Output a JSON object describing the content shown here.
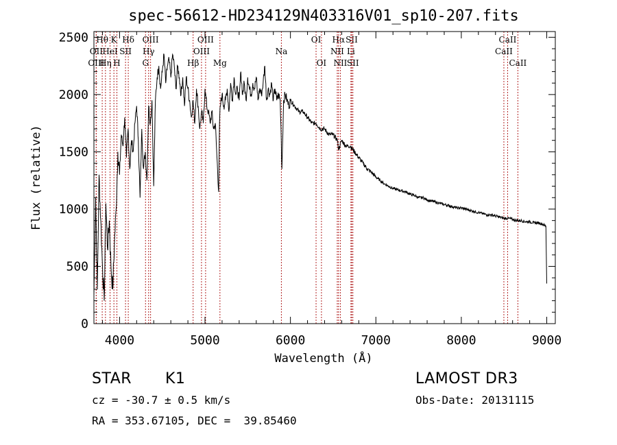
{
  "chart_data": {
    "type": "line",
    "title": "spec-56612-HD234129N403316V01_sp10-207.fits",
    "xlabel": "Wavelength (Å)",
    "ylabel": "Flux (relative)",
    "xlim": [
      3700,
      9100
    ],
    "ylim": [
      0,
      2550
    ],
    "xticks": [
      4000,
      5000,
      6000,
      7000,
      8000,
      9000
    ],
    "yticks": [
      0,
      500,
      1000,
      1500,
      2000,
      2500
    ],
    "series": [
      {
        "name": "flux",
        "x": [
          3700,
          3720,
          3740,
          3760,
          3780,
          3800,
          3820,
          3840,
          3860,
          3880,
          3900,
          3920,
          3940,
          3960,
          3980,
          4000,
          4020,
          4040,
          4060,
          4080,
          4100,
          4120,
          4140,
          4160,
          4180,
          4200,
          4220,
          4240,
          4260,
          4280,
          4300,
          4320,
          4340,
          4360,
          4380,
          4400,
          4420,
          4440,
          4460,
          4480,
          4500,
          4520,
          4540,
          4560,
          4580,
          4600,
          4620,
          4640,
          4660,
          4680,
          4700,
          4720,
          4740,
          4760,
          4780,
          4800,
          4820,
          4840,
          4860,
          4880,
          4900,
          4920,
          4940,
          4960,
          4980,
          5000,
          5020,
          5040,
          5060,
          5080,
          5100,
          5120,
          5140,
          5160,
          5170,
          5180,
          5200,
          5220,
          5240,
          5260,
          5280,
          5300,
          5320,
          5340,
          5360,
          5380,
          5400,
          5420,
          5440,
          5460,
          5480,
          5500,
          5520,
          5540,
          5560,
          5580,
          5600,
          5620,
          5640,
          5660,
          5680,
          5700,
          5720,
          5740,
          5760,
          5780,
          5800,
          5820,
          5840,
          5860,
          5880,
          5893,
          5900,
          5920,
          5940,
          5960,
          5980,
          6000,
          6050,
          6100,
          6150,
          6200,
          6250,
          6300,
          6350,
          6400,
          6450,
          6500,
          6550,
          6563,
          6600,
          6650,
          6700,
          6750,
          6800,
          6850,
          6900,
          6950,
          7000,
          7050,
          7100,
          7150,
          7200,
          7250,
          7300,
          7350,
          7400,
          7450,
          7500,
          7550,
          7600,
          7650,
          7700,
          7750,
          7800,
          7850,
          7900,
          7950,
          8000,
          8050,
          8100,
          8150,
          8200,
          8250,
          8300,
          8350,
          8400,
          8450,
          8500,
          8550,
          8600,
          8650,
          8700,
          8750,
          8800,
          8850,
          8900,
          8950,
          8990,
          9000
        ],
        "values": [
          250,
          1100,
          300,
          1300,
          900,
          500,
          200,
          1050,
          650,
          900,
          500,
          300,
          700,
          1000,
          1500,
          1300,
          1650,
          1550,
          1800,
          1450,
          1700,
          1350,
          1600,
          1500,
          1750,
          1900,
          1600,
          1100,
          1700,
          1350,
          1500,
          1250,
          1900,
          1750,
          1950,
          1200,
          1950,
          2150,
          2250,
          2050,
          2200,
          2350,
          2100,
          2250,
          2300,
          2150,
          2350,
          2250,
          2050,
          2250,
          2150,
          2000,
          2150,
          1900,
          2150,
          2050,
          1950,
          1800,
          1950,
          1750,
          2050,
          1900,
          1700,
          1850,
          1750,
          2050,
          1900,
          1850,
          1750,
          1850,
          1700,
          1750,
          1450,
          1150,
          1750,
          1900,
          2000,
          1900,
          1950,
          2050,
          1850,
          2100,
          1950,
          2150,
          2000,
          2050,
          1950,
          2200,
          2000,
          2100,
          1950,
          2150,
          2050,
          2000,
          2100,
          2050,
          2150,
          1950,
          2050,
          2000,
          2100,
          2250,
          1950,
          2050,
          2000,
          2100,
          1950,
          2050,
          1950,
          2000,
          1950,
          1600,
          1350,
          1950,
          2000,
          1950,
          1900,
          1950,
          1900,
          1850,
          1850,
          1800,
          1750,
          1750,
          1700,
          1700,
          1650,
          1650,
          1600,
          1520,
          1600,
          1550,
          1550,
          1500,
          1450,
          1400,
          1350,
          1320,
          1280,
          1250,
          1220,
          1200,
          1180,
          1170,
          1160,
          1150,
          1130,
          1120,
          1100,
          1100,
          1080,
          1070,
          1060,
          1050,
          1040,
          1030,
          1020,
          1010,
          1010,
          1000,
          990,
          980,
          970,
          960,
          950,
          950,
          940,
          930,
          920,
          920,
          910,
          900,
          900,
          890,
          890,
          880,
          880,
          870,
          850,
          350
        ]
      }
    ],
    "lines": [
      {
        "label": "Hθ",
        "x": 3797,
        "row": 1
      },
      {
        "label": "OII",
        "x": 3727,
        "row": 2
      },
      {
        "label": "OIII",
        "x": 3727,
        "row": 3
      },
      {
        "label": "K",
        "x": 3934,
        "row": 1
      },
      {
        "label": "HeI",
        "x": 3889,
        "row": 2
      },
      {
        "label": "Hη",
        "x": 3835,
        "row": 3
      },
      {
        "label": "SII",
        "x": 4070,
        "row": 2
      },
      {
        "label": "H",
        "x": 3969,
        "row": 3
      },
      {
        "label": "Hδ",
        "x": 4102,
        "row": 1
      },
      {
        "label": "OIII",
        "x": 4363,
        "row": 1
      },
      {
        "label": "Hγ",
        "x": 4340,
        "row": 2
      },
      {
        "label": "G",
        "x": 4304,
        "row": 3
      },
      {
        "label": "Hβ",
        "x": 4861,
        "row": 3
      },
      {
        "label": "OIII",
        "x": 5007,
        "row": 1
      },
      {
        "label": "OIII",
        "x": 4959,
        "row": 2
      },
      {
        "label": "Mg",
        "x": 5175,
        "row": 3
      },
      {
        "label": "Na",
        "x": 5894,
        "row": 2
      },
      {
        "label": "OI",
        "x": 6300,
        "row": 1
      },
      {
        "label": "OI",
        "x": 6363,
        "row": 3
      },
      {
        "label": "Hα",
        "x": 6563,
        "row": 1
      },
      {
        "label": "SII",
        "x": 6717,
        "row": 1
      },
      {
        "label": "NII",
        "x": 6548,
        "row": 2
      },
      {
        "label": "Li",
        "x": 6708,
        "row": 2
      },
      {
        "label": "NII",
        "x": 6584,
        "row": 3
      },
      {
        "label": "SII",
        "x": 6731,
        "row": 3
      },
      {
        "label": "CaII",
        "x": 8542,
        "row": 1
      },
      {
        "label": "CaII",
        "x": 8498,
        "row": 2
      },
      {
        "label": "CaII",
        "x": 8662,
        "row": 3
      }
    ]
  },
  "info": {
    "object_class": "STAR",
    "subclass": "K1",
    "survey": "LAMOST DR3",
    "velocity": "cz = -30.7 ± 0.5 km/s",
    "obs_date": "Obs-Date: 20131115",
    "coords": "RA = 353.67105, DEC =  39.85460"
  },
  "colors": {
    "line_marker": "#b22222",
    "spectrum": "#000000",
    "axes": "#000000"
  }
}
